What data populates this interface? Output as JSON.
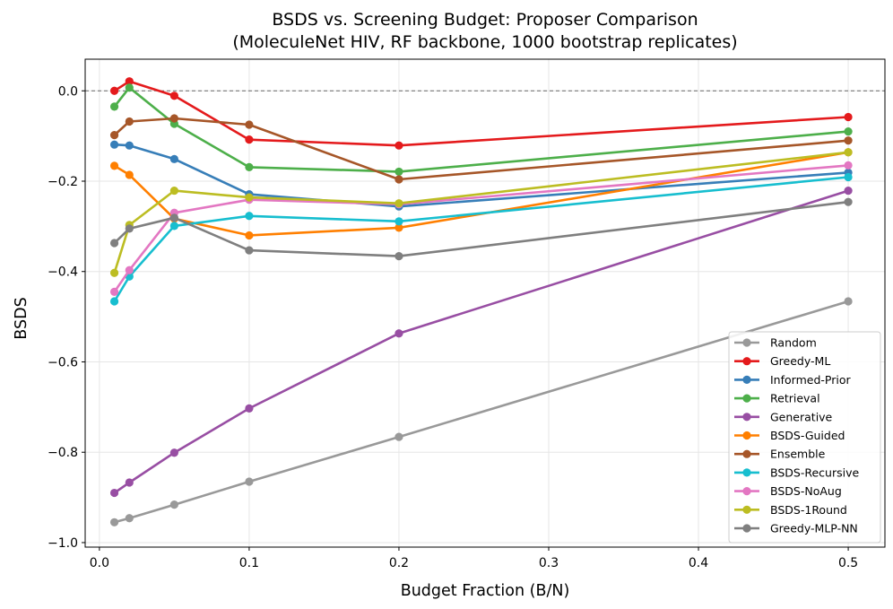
{
  "chart_data": {
    "type": "line",
    "title": "BSDS vs. Screening Budget: Proposer Comparison",
    "subtitle": "(MoleculeNet HIV, RF backbone, 1000 bootstrap replicates)",
    "xlabel": "Budget Fraction (B/N)",
    "ylabel": "BSDS",
    "xlim": [
      -0.0095,
      0.5245
    ],
    "ylim": [
      -1.01,
      0.07
    ],
    "xticks": [
      0.0,
      0.1,
      0.2,
      0.3,
      0.4,
      0.5
    ],
    "xtick_labels": [
      "0.0",
      "0.1",
      "0.2",
      "0.3",
      "0.4",
      "0.5"
    ],
    "yticks": [
      0.0,
      -0.2,
      -0.4,
      -0.6,
      -0.8,
      -1.0
    ],
    "ytick_labels": [
      "0.0",
      "−0.2",
      "−0.4",
      "−0.6",
      "−0.8",
      "−1.0"
    ],
    "grid": true,
    "reference_line": 0.0,
    "legend_position": "lower-right",
    "x": [
      0.01,
      0.02,
      0.05,
      0.1,
      0.2,
      0.5
    ],
    "series": [
      {
        "name": "Random",
        "color": "#999999",
        "values": [
          -0.955,
          -0.946,
          -0.916,
          -0.865,
          -0.766,
          -0.466
        ]
      },
      {
        "name": "Greedy-ML",
        "color": "#e41a1c",
        "values": [
          0.0,
          0.021,
          -0.011,
          -0.108,
          -0.121,
          -0.058
        ]
      },
      {
        "name": "Informed-Prior",
        "color": "#377eb8",
        "values": [
          -0.119,
          -0.121,
          -0.151,
          -0.229,
          -0.256,
          -0.181
        ]
      },
      {
        "name": "Retrieval",
        "color": "#4daf4a",
        "values": [
          -0.035,
          0.007,
          -0.073,
          -0.169,
          -0.179,
          -0.09
        ]
      },
      {
        "name": "Generative",
        "color": "#984ea3",
        "values": [
          -0.89,
          -0.867,
          -0.801,
          -0.703,
          -0.537,
          -0.221
        ]
      },
      {
        "name": "BSDS-Guided",
        "color": "#ff7f00",
        "values": [
          -0.166,
          -0.186,
          -0.283,
          -0.32,
          -0.303,
          -0.136
        ]
      },
      {
        "name": "Ensemble",
        "color": "#a65628",
        "values": [
          -0.098,
          -0.068,
          -0.061,
          -0.075,
          -0.196,
          -0.11
        ]
      },
      {
        "name": "BSDS-Recursive",
        "color": "#17becf",
        "values": [
          -0.466,
          -0.411,
          -0.299,
          -0.277,
          -0.289,
          -0.191
        ]
      },
      {
        "name": "BSDS-NoAug",
        "color": "#e377c2",
        "values": [
          -0.445,
          -0.397,
          -0.27,
          -0.241,
          -0.251,
          -0.165
        ]
      },
      {
        "name": "BSDS-1Round",
        "color": "#bcbd22",
        "values": [
          -0.403,
          -0.297,
          -0.221,
          -0.236,
          -0.249,
          -0.136
        ]
      },
      {
        "name": "Greedy-MLP-NN",
        "color": "#7f7f7f",
        "values": [
          -0.337,
          -0.305,
          -0.281,
          -0.353,
          -0.366,
          -0.246
        ]
      }
    ]
  }
}
